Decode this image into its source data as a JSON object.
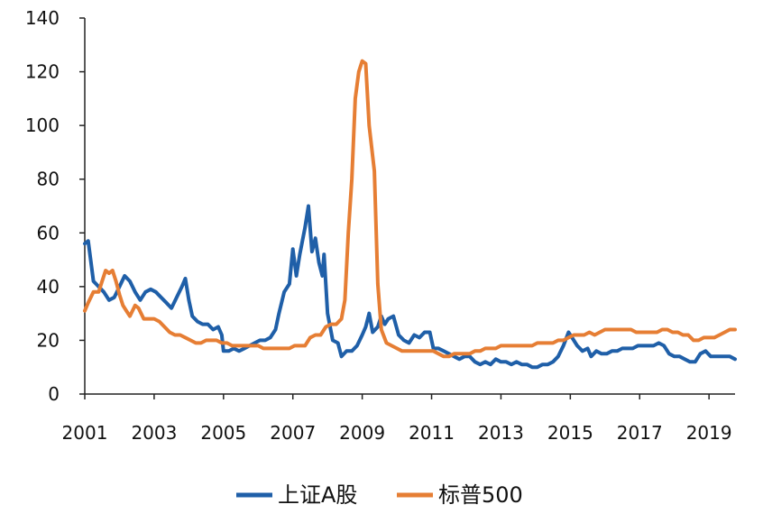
{
  "chart_data": {
    "type": "line",
    "title": "",
    "xlabel": "",
    "ylabel": "",
    "xlim": [
      2001.0,
      2019.75
    ],
    "ylim": [
      0,
      140
    ],
    "yticks": [
      0,
      20,
      40,
      60,
      80,
      100,
      120,
      140
    ],
    "xticks": [
      2001,
      2003,
      2005,
      2007,
      2009,
      2011,
      2013,
      2015,
      2017,
      2019
    ],
    "ytick_labels": [
      "0",
      "20",
      "40",
      "60",
      "80",
      "100",
      "120",
      "140"
    ],
    "xtick_labels": [
      "2001",
      "2003",
      "2005",
      "2007",
      "2009",
      "2011",
      "2013",
      "2015",
      "2017",
      "2019"
    ],
    "grid": false,
    "legend_position": "bottom",
    "series": [
      {
        "name": "上证A股",
        "color": "#1f5fa8",
        "points": [
          [
            2001.0,
            56
          ],
          [
            2001.1,
            57
          ],
          [
            2001.25,
            42
          ],
          [
            2001.4,
            40
          ],
          [
            2001.55,
            38
          ],
          [
            2001.7,
            35
          ],
          [
            2001.85,
            36
          ],
          [
            2002.0,
            40
          ],
          [
            2002.15,
            44
          ],
          [
            2002.3,
            42
          ],
          [
            2002.45,
            38
          ],
          [
            2002.6,
            35
          ],
          [
            2002.75,
            38
          ],
          [
            2002.9,
            39
          ],
          [
            2003.05,
            38
          ],
          [
            2003.2,
            36
          ],
          [
            2003.35,
            34
          ],
          [
            2003.5,
            32
          ],
          [
            2003.65,
            36
          ],
          [
            2003.8,
            40
          ],
          [
            2003.9,
            43
          ],
          [
            2004.0,
            35
          ],
          [
            2004.1,
            29
          ],
          [
            2004.25,
            27
          ],
          [
            2004.4,
            26
          ],
          [
            2004.55,
            26
          ],
          [
            2004.7,
            24
          ],
          [
            2004.85,
            25
          ],
          [
            2004.95,
            22
          ],
          [
            2005.0,
            16
          ],
          [
            2005.15,
            16
          ],
          [
            2005.3,
            17
          ],
          [
            2005.45,
            16
          ],
          [
            2005.6,
            17
          ],
          [
            2005.75,
            18
          ],
          [
            2005.9,
            19
          ],
          [
            2006.05,
            20
          ],
          [
            2006.2,
            20
          ],
          [
            2006.35,
            21
          ],
          [
            2006.5,
            24
          ],
          [
            2006.6,
            30
          ],
          [
            2006.75,
            38
          ],
          [
            2006.9,
            41
          ],
          [
            2007.0,
            54
          ],
          [
            2007.1,
            44
          ],
          [
            2007.2,
            52
          ],
          [
            2007.35,
            62
          ],
          [
            2007.45,
            70
          ],
          [
            2007.55,
            53
          ],
          [
            2007.65,
            58
          ],
          [
            2007.75,
            49
          ],
          [
            2007.85,
            44
          ],
          [
            2007.9,
            52
          ],
          [
            2008.0,
            30
          ],
          [
            2008.15,
            20
          ],
          [
            2008.3,
            19
          ],
          [
            2008.4,
            14
          ],
          [
            2008.55,
            16
          ],
          [
            2008.7,
            16
          ],
          [
            2008.85,
            18
          ],
          [
            2009.0,
            22
          ],
          [
            2009.1,
            25
          ],
          [
            2009.2,
            30
          ],
          [
            2009.3,
            23
          ],
          [
            2009.45,
            25
          ],
          [
            2009.55,
            29
          ],
          [
            2009.65,
            26
          ],
          [
            2009.75,
            28
          ],
          [
            2009.9,
            29
          ],
          [
            2010.05,
            22
          ],
          [
            2010.2,
            20
          ],
          [
            2010.35,
            19
          ],
          [
            2010.5,
            22
          ],
          [
            2010.65,
            21
          ],
          [
            2010.8,
            23
          ],
          [
            2010.95,
            23
          ],
          [
            2011.05,
            17
          ],
          [
            2011.2,
            17
          ],
          [
            2011.35,
            16
          ],
          [
            2011.5,
            15
          ],
          [
            2011.65,
            14
          ],
          [
            2011.8,
            13
          ],
          [
            2011.95,
            14
          ],
          [
            2012.1,
            14
          ],
          [
            2012.25,
            12
          ],
          [
            2012.4,
            11
          ],
          [
            2012.55,
            12
          ],
          [
            2012.7,
            11
          ],
          [
            2012.85,
            13
          ],
          [
            2013.0,
            12
          ],
          [
            2013.15,
            12
          ],
          [
            2013.3,
            11
          ],
          [
            2013.45,
            12
          ],
          [
            2013.6,
            11
          ],
          [
            2013.75,
            11
          ],
          [
            2013.9,
            10
          ],
          [
            2014.05,
            10
          ],
          [
            2014.2,
            11
          ],
          [
            2014.35,
            11
          ],
          [
            2014.5,
            12
          ],
          [
            2014.65,
            14
          ],
          [
            2014.8,
            18
          ],
          [
            2014.95,
            23
          ],
          [
            2015.05,
            21
          ],
          [
            2015.2,
            18
          ],
          [
            2015.35,
            16
          ],
          [
            2015.5,
            17
          ],
          [
            2015.6,
            14
          ],
          [
            2015.75,
            16
          ],
          [
            2015.9,
            15
          ],
          [
            2016.05,
            15
          ],
          [
            2016.2,
            16
          ],
          [
            2016.35,
            16
          ],
          [
            2016.5,
            17
          ],
          [
            2016.65,
            17
          ],
          [
            2016.8,
            17
          ],
          [
            2016.95,
            18
          ],
          [
            2017.1,
            18
          ],
          [
            2017.25,
            18
          ],
          [
            2017.4,
            18
          ],
          [
            2017.55,
            19
          ],
          [
            2017.7,
            18
          ],
          [
            2017.85,
            15
          ],
          [
            2018.0,
            14
          ],
          [
            2018.15,
            14
          ],
          [
            2018.3,
            13
          ],
          [
            2018.45,
            12
          ],
          [
            2018.6,
            12
          ],
          [
            2018.75,
            15
          ],
          [
            2018.9,
            16
          ],
          [
            2019.05,
            14
          ],
          [
            2019.2,
            14
          ],
          [
            2019.35,
            14
          ],
          [
            2019.5,
            14
          ],
          [
            2019.6,
            14
          ],
          [
            2019.75,
            13
          ]
        ]
      },
      {
        "name": "标普500",
        "color": "#e67e34",
        "points": [
          [
            2001.0,
            31
          ],
          [
            2001.1,
            34
          ],
          [
            2001.25,
            38
          ],
          [
            2001.4,
            38
          ],
          [
            2001.5,
            42
          ],
          [
            2001.6,
            46
          ],
          [
            2001.7,
            45
          ],
          [
            2001.8,
            46
          ],
          [
            2001.9,
            42
          ],
          [
            2002.0,
            37
          ],
          [
            2002.1,
            33
          ],
          [
            2002.2,
            31
          ],
          [
            2002.3,
            29
          ],
          [
            2002.45,
            33
          ],
          [
            2002.55,
            32
          ],
          [
            2002.7,
            28
          ],
          [
            2002.85,
            28
          ],
          [
            2003.0,
            28
          ],
          [
            2003.15,
            27
          ],
          [
            2003.3,
            25
          ],
          [
            2003.45,
            23
          ],
          [
            2003.6,
            22
          ],
          [
            2003.75,
            22
          ],
          [
            2003.9,
            21
          ],
          [
            2004.05,
            20
          ],
          [
            2004.2,
            19
          ],
          [
            2004.35,
            19
          ],
          [
            2004.5,
            20
          ],
          [
            2004.65,
            20
          ],
          [
            2004.8,
            20
          ],
          [
            2004.95,
            19
          ],
          [
            2005.1,
            19
          ],
          [
            2005.25,
            18
          ],
          [
            2005.4,
            18
          ],
          [
            2005.55,
            18
          ],
          [
            2005.7,
            18
          ],
          [
            2005.85,
            18
          ],
          [
            2006.0,
            18
          ],
          [
            2006.15,
            17
          ],
          [
            2006.3,
            17
          ],
          [
            2006.45,
            17
          ],
          [
            2006.6,
            17
          ],
          [
            2006.75,
            17
          ],
          [
            2006.9,
            17
          ],
          [
            2007.05,
            18
          ],
          [
            2007.2,
            18
          ],
          [
            2007.35,
            18
          ],
          [
            2007.5,
            21
          ],
          [
            2007.65,
            22
          ],
          [
            2007.8,
            22
          ],
          [
            2007.95,
            25
          ],
          [
            2008.1,
            26
          ],
          [
            2008.25,
            26
          ],
          [
            2008.4,
            28
          ],
          [
            2008.5,
            35
          ],
          [
            2008.6,
            60
          ],
          [
            2008.7,
            80
          ],
          [
            2008.8,
            110
          ],
          [
            2008.9,
            120
          ],
          [
            2009.0,
            124
          ],
          [
            2009.1,
            123
          ],
          [
            2009.2,
            100
          ],
          [
            2009.35,
            83
          ],
          [
            2009.45,
            41
          ],
          [
            2009.55,
            24
          ],
          [
            2009.7,
            19
          ],
          [
            2009.85,
            18
          ],
          [
            2010.0,
            17
          ],
          [
            2010.15,
            16
          ],
          [
            2010.3,
            16
          ],
          [
            2010.45,
            16
          ],
          [
            2010.6,
            16
          ],
          [
            2010.75,
            16
          ],
          [
            2010.9,
            16
          ],
          [
            2011.05,
            16
          ],
          [
            2011.2,
            15
          ],
          [
            2011.35,
            14
          ],
          [
            2011.5,
            14
          ],
          [
            2011.65,
            15
          ],
          [
            2011.8,
            15
          ],
          [
            2011.95,
            15
          ],
          [
            2012.1,
            15
          ],
          [
            2012.25,
            16
          ],
          [
            2012.4,
            16
          ],
          [
            2012.55,
            17
          ],
          [
            2012.7,
            17
          ],
          [
            2012.85,
            17
          ],
          [
            2013.0,
            18
          ],
          [
            2013.15,
            18
          ],
          [
            2013.3,
            18
          ],
          [
            2013.45,
            18
          ],
          [
            2013.6,
            18
          ],
          [
            2013.75,
            18
          ],
          [
            2013.9,
            18
          ],
          [
            2014.05,
            19
          ],
          [
            2014.2,
            19
          ],
          [
            2014.35,
            19
          ],
          [
            2014.5,
            19
          ],
          [
            2014.65,
            20
          ],
          [
            2014.8,
            20
          ],
          [
            2014.95,
            21
          ],
          [
            2015.1,
            22
          ],
          [
            2015.25,
            22
          ],
          [
            2015.4,
            22
          ],
          [
            2015.55,
            23
          ],
          [
            2015.7,
            22
          ],
          [
            2015.85,
            23
          ],
          [
            2016.0,
            24
          ],
          [
            2016.15,
            24
          ],
          [
            2016.3,
            24
          ],
          [
            2016.45,
            24
          ],
          [
            2016.6,
            24
          ],
          [
            2016.75,
            24
          ],
          [
            2016.9,
            23
          ],
          [
            2017.05,
            23
          ],
          [
            2017.2,
            23
          ],
          [
            2017.35,
            23
          ],
          [
            2017.5,
            23
          ],
          [
            2017.65,
            24
          ],
          [
            2017.8,
            24
          ],
          [
            2017.95,
            23
          ],
          [
            2018.1,
            23
          ],
          [
            2018.25,
            22
          ],
          [
            2018.4,
            22
          ],
          [
            2018.55,
            20
          ],
          [
            2018.7,
            20
          ],
          [
            2018.85,
            21
          ],
          [
            2019.0,
            21
          ],
          [
            2019.15,
            21
          ],
          [
            2019.3,
            22
          ],
          [
            2019.45,
            23
          ],
          [
            2019.6,
            24
          ],
          [
            2019.75,
            24
          ]
        ]
      }
    ]
  }
}
